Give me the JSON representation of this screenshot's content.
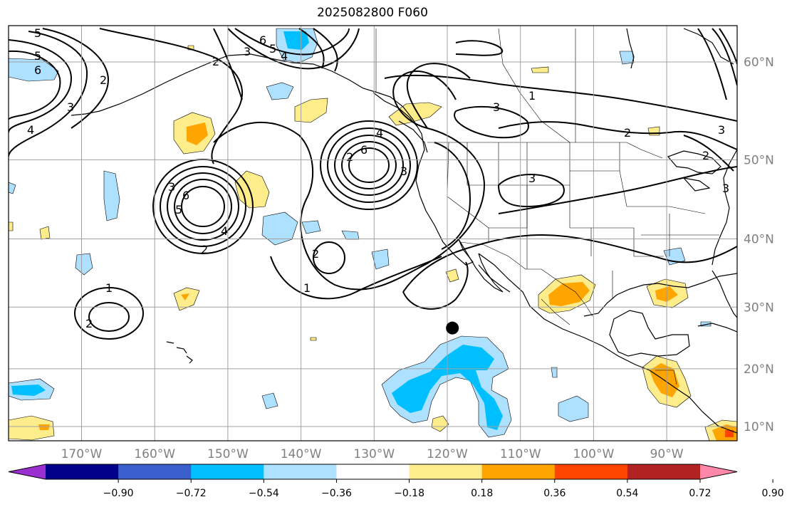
{
  "title": "2025082800 F060",
  "map": {
    "lon_ticks": [
      "170°W",
      "160°W",
      "150°W",
      "140°W",
      "130°W",
      "120°W",
      "110°W",
      "100°W",
      "90°W"
    ],
    "lat_ticks": [
      "60°N",
      "50°N",
      "40°N",
      "30°N",
      "20°N",
      "10°N"
    ],
    "marker": {
      "lon": -119.3,
      "lat": 26.7
    },
    "contour_labels": [
      {
        "text": "5"
      },
      {
        "text": "5"
      },
      {
        "text": "6"
      },
      {
        "text": "2"
      },
      {
        "text": "3"
      },
      {
        "text": "4"
      },
      {
        "text": "6"
      },
      {
        "text": "5"
      },
      {
        "text": "4"
      },
      {
        "text": "3"
      },
      {
        "text": "2"
      },
      {
        "text": "1"
      },
      {
        "text": "3"
      },
      {
        "text": "2"
      },
      {
        "text": "3"
      },
      {
        "text": "2"
      },
      {
        "text": "3"
      },
      {
        "text": "4"
      },
      {
        "text": "3"
      },
      {
        "text": "6"
      },
      {
        "text": "2"
      },
      {
        "text": "3"
      },
      {
        "text": "3"
      },
      {
        "text": "6"
      },
      {
        "text": "5"
      },
      {
        "text": "4"
      },
      {
        "text": "2"
      },
      {
        "text": "2"
      },
      {
        "text": "1"
      },
      {
        "text": "1"
      },
      {
        "text": "2"
      }
    ]
  },
  "colorbar": {
    "colors": [
      "#9b30d0",
      "#00008b",
      "#3a5fcd",
      "#00bfff",
      "#aee1ff",
      "#ffffff",
      "#ffec8b",
      "#ffa500",
      "#ff4500",
      "#b22222",
      "#ff88aa"
    ],
    "labels": [
      "−0.90",
      "−0.72",
      "−0.54",
      "−0.36",
      "−0.18",
      "0.18",
      "0.36",
      "0.54",
      "0.72",
      "0.90"
    ]
  },
  "colors": {
    "light_blue": "#aee1ff",
    "blue": "#00bfff",
    "yellow": "#ffec8b",
    "orange": "#ffa500",
    "red": "#ff4500",
    "grid": "#a0a0a0"
  }
}
